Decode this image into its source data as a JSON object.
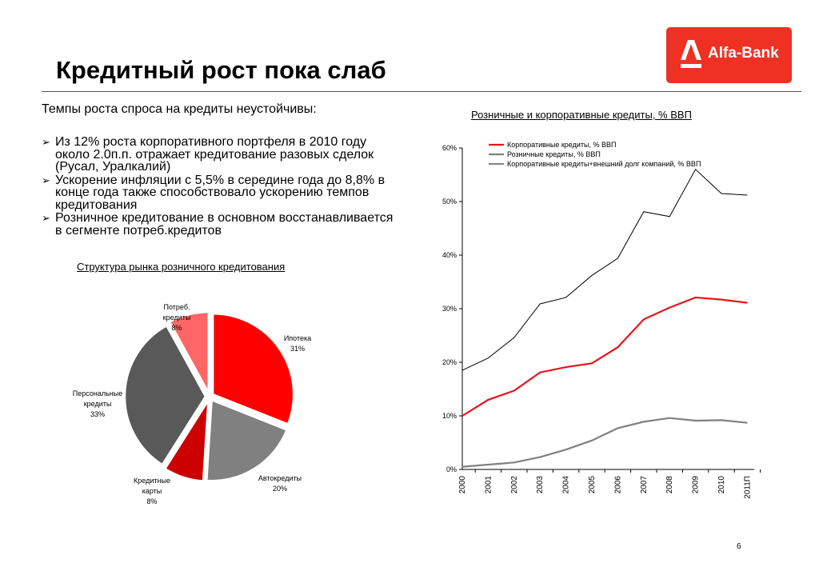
{
  "slide": {
    "title": "Кредитный рост пока слаб",
    "brand": "Alfa-Bank",
    "subhead": "Темпы роста спроса на кредиты неустойчивы:",
    "bullets": [
      "Из 12% роста корпоративного портфеля в 2010 году около 2.0п.п. отражает кредитование разовых сделок (Русал, Уралкалий)",
      "Ускорение инфляции с 5,5% в середине года до 8,8% в конце года также способствовало ускорению темпов кредитования",
      "Розничное кредитование в основном восстанавливается в сегменте потреб.кредитов"
    ],
    "page_number": "6",
    "colors": {
      "brand_red": "#ef3124"
    }
  },
  "chart_data": [
    {
      "type": "pie",
      "title": "Структура рынка розничного кредитования",
      "slices": [
        {
          "label": "Ипотека",
          "value": 31,
          "value_label": "31%",
          "color": "#ff0000"
        },
        {
          "label": "Автокредиты",
          "value": 20,
          "value_label": "20%",
          "color": "#808080"
        },
        {
          "label": "Кредитные карты",
          "value": 8,
          "value_label": "8%",
          "color": "#cc0000"
        },
        {
          "label": "Персональные кредиты",
          "value": 33,
          "value_label": "33%",
          "color": "#595959"
        },
        {
          "label": "Потреб. кредиты",
          "value": 8,
          "value_label": "8%",
          "color": "#ff6666"
        }
      ]
    },
    {
      "type": "line",
      "title": "Розничные и корпоративные кредиты, % ВВП",
      "x": [
        "2000",
        "2001",
        "2002",
        "2003",
        "2004",
        "2005",
        "2006",
        "2007",
        "2008",
        "2009",
        "2010",
        "2011П"
      ],
      "y_ticks": [
        "0%",
        "10%",
        "20%",
        "30%",
        "40%",
        "50%",
        "60%"
      ],
      "ylim": [
        0,
        60
      ],
      "legend_position": "top-left",
      "series": [
        {
          "name": "Корпоративные кредиты, % ВВП",
          "color": "#e8141a",
          "width": 2.2,
          "values": [
            10.0,
            13.0,
            14.7,
            18.1,
            19.1,
            19.8,
            22.8,
            28.0,
            30.2,
            32.1,
            31.7,
            31.1
          ]
        },
        {
          "name": "Розничные кредиты, % ВВП",
          "color": "#808080",
          "width": 2.2,
          "values": [
            0.5,
            0.9,
            1.3,
            2.3,
            3.7,
            5.4,
            7.7,
            8.9,
            9.6,
            9.1,
            9.2,
            8.7
          ]
        },
        {
          "name": "Корпоративные кредиты+внешний долг компаний, % ВВП",
          "color": "#000000",
          "width": 1,
          "values": [
            18.5,
            20.8,
            24.6,
            30.9,
            32.1,
            36.2,
            39.4,
            48.1,
            47.2,
            56.0,
            51.5,
            51.2
          ]
        }
      ]
    }
  ]
}
